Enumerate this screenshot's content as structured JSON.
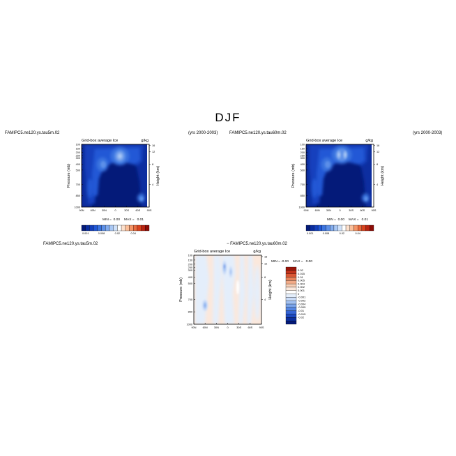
{
  "figure": {
    "title": "DJF",
    "case_top_left": "FAMIPC5.ne120.ys.tau5m.02",
    "years_top_left": "(yrs 2000-2003)",
    "case_top_right": "FAMIPC5.ne120.ys.tau60m.02",
    "years_top_right": "(yrs 2000-2003)",
    "case_bottom_left": "FAMIPC5.ne120.ys.tau5m.02",
    "case_bottom_diff": "− FAMIPC5.ne120.ys.tau60m.02"
  },
  "colors": {
    "abs_levels": [
      "#041a79",
      "#0a2da0",
      "#1440bd",
      "#2158d6",
      "#3b74e0",
      "#5c8fe8",
      "#82acef",
      "#a9c8f5",
      "#cfe1fa",
      "#ffffff",
      "#fde0cc",
      "#fbbf9a",
      "#f59466",
      "#ea6a3e",
      "#d9431f",
      "#b92412",
      "#8e0c06"
    ],
    "diff_levels": [
      "#041a79",
      "#0c2f9e",
      "#1c48bf",
      "#3565d6",
      "#5586e2",
      "#7ba5ec",
      "#a3c2f3",
      "#cadcf8",
      "#e4eefb",
      "#ffffff",
      "#fbe8dc",
      "#f8cfb6",
      "#f2ab88",
      "#e8825a",
      "#d95734",
      "#c1321a",
      "#9a1509"
    ]
  },
  "chart_data": [
    {
      "type": "heatmap",
      "panel": "top-left",
      "title_left": "Grid-box average Ice",
      "title_right": "g/kg",
      "xlabel": "",
      "ylabel": "Pressure (mb)",
      "ylabel_right": "Height (km)",
      "x_ticks": [
        "90N",
        "60N",
        "30N",
        "0",
        "30S",
        "60S",
        "90S"
      ],
      "y_ticks": [
        "100",
        "150",
        "200",
        "250",
        "300",
        "400",
        "500",
        "700",
        "850",
        "1000"
      ],
      "y_ticks_right": [
        "16",
        "12",
        "8",
        "4"
      ],
      "stats": {
        "min_label": "MIN =",
        "min": "0.00",
        "max_label": "MAX =",
        "max": "0.01"
      },
      "colorbar_labels": [
        "0.001",
        "0.008",
        "0.02",
        "0.04"
      ]
    },
    {
      "type": "heatmap",
      "panel": "top-right",
      "title_left": "Grid-box average Ice",
      "title_right": "g/kg",
      "xlabel": "",
      "ylabel": "Pressure (mb)",
      "ylabel_right": "Height (km)",
      "x_ticks": [
        "90N",
        "60N",
        "30N",
        "0",
        "30S",
        "60S",
        "90S"
      ],
      "y_ticks": [
        "100",
        "150",
        "200",
        "250",
        "300",
        "400",
        "500",
        "700",
        "850",
        "1000"
      ],
      "y_ticks_right": [
        "16",
        "12",
        "8",
        "4"
      ],
      "stats": {
        "min_label": "MIN =",
        "min": "0.00",
        "max_label": "MAX =",
        "max": "0.01"
      },
      "colorbar_labels": [
        "0.001",
        "0.008",
        "0.02",
        "0.04"
      ]
    },
    {
      "type": "heatmap",
      "panel": "bottom-difference",
      "title_left": "Grid-box average Ice",
      "title_right": "g/kg",
      "xlabel": "",
      "ylabel": "Pressure (mb)",
      "ylabel_right": "Height (km)",
      "x_ticks": [
        "90N",
        "60N",
        "30N",
        "0",
        "30S",
        "60S",
        "90S"
      ],
      "y_ticks": [
        "100",
        "150",
        "200",
        "250",
        "300",
        "400",
        "500",
        "700",
        "850",
        "1000"
      ],
      "y_ticks_right": [
        "16",
        "12",
        "8",
        "4"
      ],
      "stats": {
        "min_label": "MIN =",
        "min": "-0.00",
        "max_label": "MAX =",
        "max": "0.00"
      },
      "colorbar_labels": [
        "0.02",
        "0.015",
        "0.01",
        "0.005",
        "0.004",
        "0.002",
        "0.001",
        "0",
        "-0.001",
        "-0.002",
        "-0.004",
        "-0.005",
        "-0.01",
        "-0.015",
        "-0.02"
      ]
    }
  ]
}
